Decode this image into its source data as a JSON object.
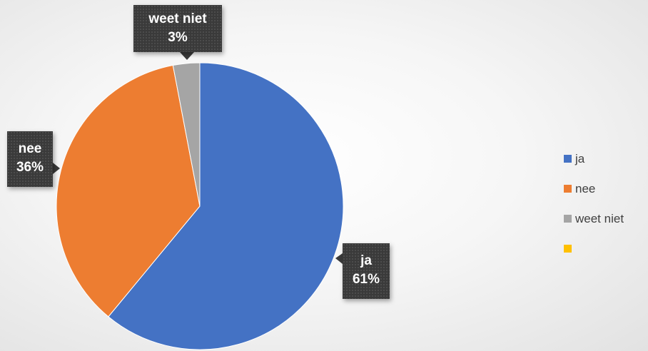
{
  "chart_data": {
    "type": "pie",
    "categories": [
      "ja",
      "nee",
      "weet niet",
      ""
    ],
    "values": [
      61,
      36,
      3,
      0
    ],
    "percent_labels": [
      "61%",
      "36%",
      "3%",
      ""
    ],
    "colors": [
      "#4472C4",
      "#ED7D31",
      "#A5A5A5",
      "#FFC000"
    ],
    "legend_position": "right"
  }
}
